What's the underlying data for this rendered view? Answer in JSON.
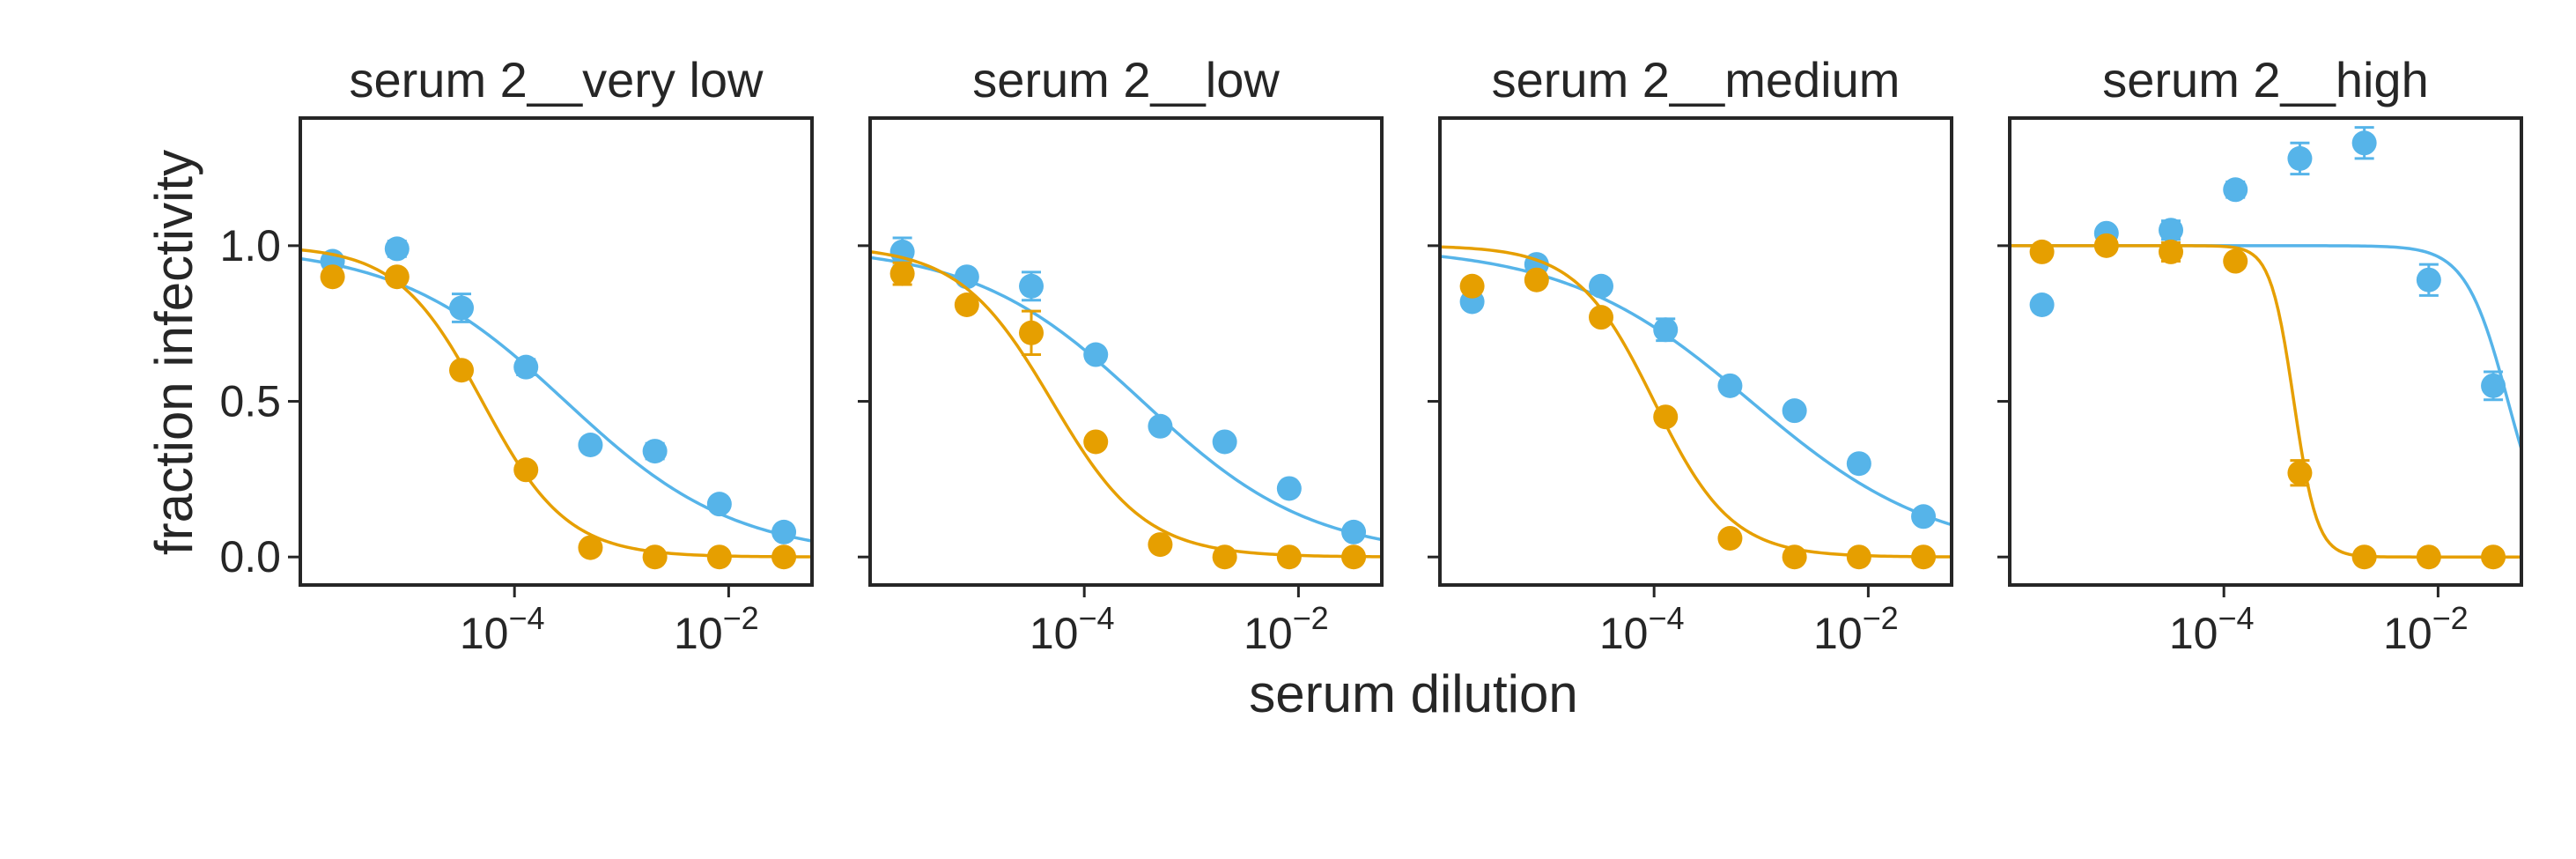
{
  "chart_data": {
    "type": "scatter",
    "xlabel": "serum dilution",
    "ylabel": "fraction infectivity",
    "xscale": "log",
    "xlim": [
      1e-06,
      0.06
    ],
    "ylim": [
      -0.09,
      1.41
    ],
    "xticks": [
      {
        "value": 0.0001,
        "base": "10",
        "exp": "−4"
      },
      {
        "value": 0.01,
        "base": "10",
        "exp": "−2"
      }
    ],
    "yticks": [
      {
        "value": 1.0,
        "label": "1.0"
      },
      {
        "value": 0.5,
        "label": "0.5"
      },
      {
        "value": 0.0,
        "label": "0.0"
      }
    ],
    "grid": false,
    "colors": {
      "blue": "#56b4e9",
      "orange": "#e69f00",
      "axis": "#262626"
    },
    "x": [
      2e-06,
      8e-06,
      3.2e-05,
      0.000128,
      0.000512,
      0.002048,
      0.008192,
      0.032768
    ],
    "panels": [
      {
        "title": "serum 2__very low",
        "series": [
          {
            "color": "blue",
            "y": [
              0.95,
              0.99,
              0.8,
              0.61,
              0.36,
              0.34,
              0.17,
              0.08
            ],
            "err": [
              0.015,
              0.025,
              0.045,
              0.025,
              0.02,
              0.025,
              0.02,
              0.015
            ],
            "ic50": 0.0003,
            "hill": 0.55
          },
          {
            "color": "orange",
            "y": [
              0.9,
              0.9,
              0.6,
              0.28,
              0.03,
              0.0,
              0.0,
              0.0
            ],
            "err": [
              0.015,
              0.02,
              0.015,
              0.015,
              0.01,
              0.005,
              0.005,
              0.005
            ],
            "ic50": 5e-05,
            "hill": 1.1
          }
        ]
      },
      {
        "title": "serum 2__low",
        "series": [
          {
            "color": "blue",
            "y": [
              0.98,
              0.9,
              0.87,
              0.65,
              0.42,
              0.37,
              0.22,
              0.08
            ],
            "err": [
              0.045,
              0.02,
              0.045,
              0.02,
              0.02,
              0.02,
              0.02,
              0.015
            ],
            "ic50": 0.00035,
            "hill": 0.55
          },
          {
            "color": "orange",
            "y": [
              0.91,
              0.81,
              0.72,
              0.37,
              0.04,
              0.0,
              0.0,
              0.0
            ],
            "err": [
              0.035,
              0.015,
              0.07,
              0.015,
              0.01,
              0.005,
              0.005,
              0.005
            ],
            "ic50": 5e-05,
            "hill": 1.0
          }
        ]
      },
      {
        "title": "serum 2__medium",
        "series": [
          {
            "color": "blue",
            "y": [
              0.82,
              0.94,
              0.87,
              0.73,
              0.55,
              0.47,
              0.3,
              0.13
            ],
            "err": [
              0.02,
              0.015,
              0.02,
              0.035,
              0.02,
              0.02,
              0.02,
              0.015
            ],
            "ic50": 0.0008,
            "hill": 0.5
          },
          {
            "color": "orange",
            "y": [
              0.87,
              0.89,
              0.77,
              0.45,
              0.06,
              0.0,
              0.0,
              0.0
            ],
            "err": [
              0.02,
              0.015,
              0.02,
              0.015,
              0.01,
              0.005,
              0.005,
              0.005
            ],
            "ic50": 0.0001,
            "hill": 1.2
          }
        ]
      },
      {
        "title": "serum 2__high",
        "series": [
          {
            "color": "blue",
            "y": [
              0.81,
              1.04,
              1.05,
              1.18,
              1.28,
              1.33,
              0.89,
              0.55
            ],
            "err": [
              0.02,
              0.02,
              0.03,
              0.025,
              0.05,
              0.05,
              0.05,
              0.045
            ],
            "ic50": 0.045,
            "hill": 2.2
          },
          {
            "color": "orange",
            "y": [
              0.98,
              1.0,
              0.98,
              0.95,
              0.27,
              0.0,
              0.0,
              0.0
            ],
            "err": [
              0.015,
              0.02,
              0.03,
              0.015,
              0.04,
              0.005,
              0.005,
              0.005
            ],
            "ic50": 0.00045,
            "hill": 4.0
          }
        ]
      }
    ]
  }
}
